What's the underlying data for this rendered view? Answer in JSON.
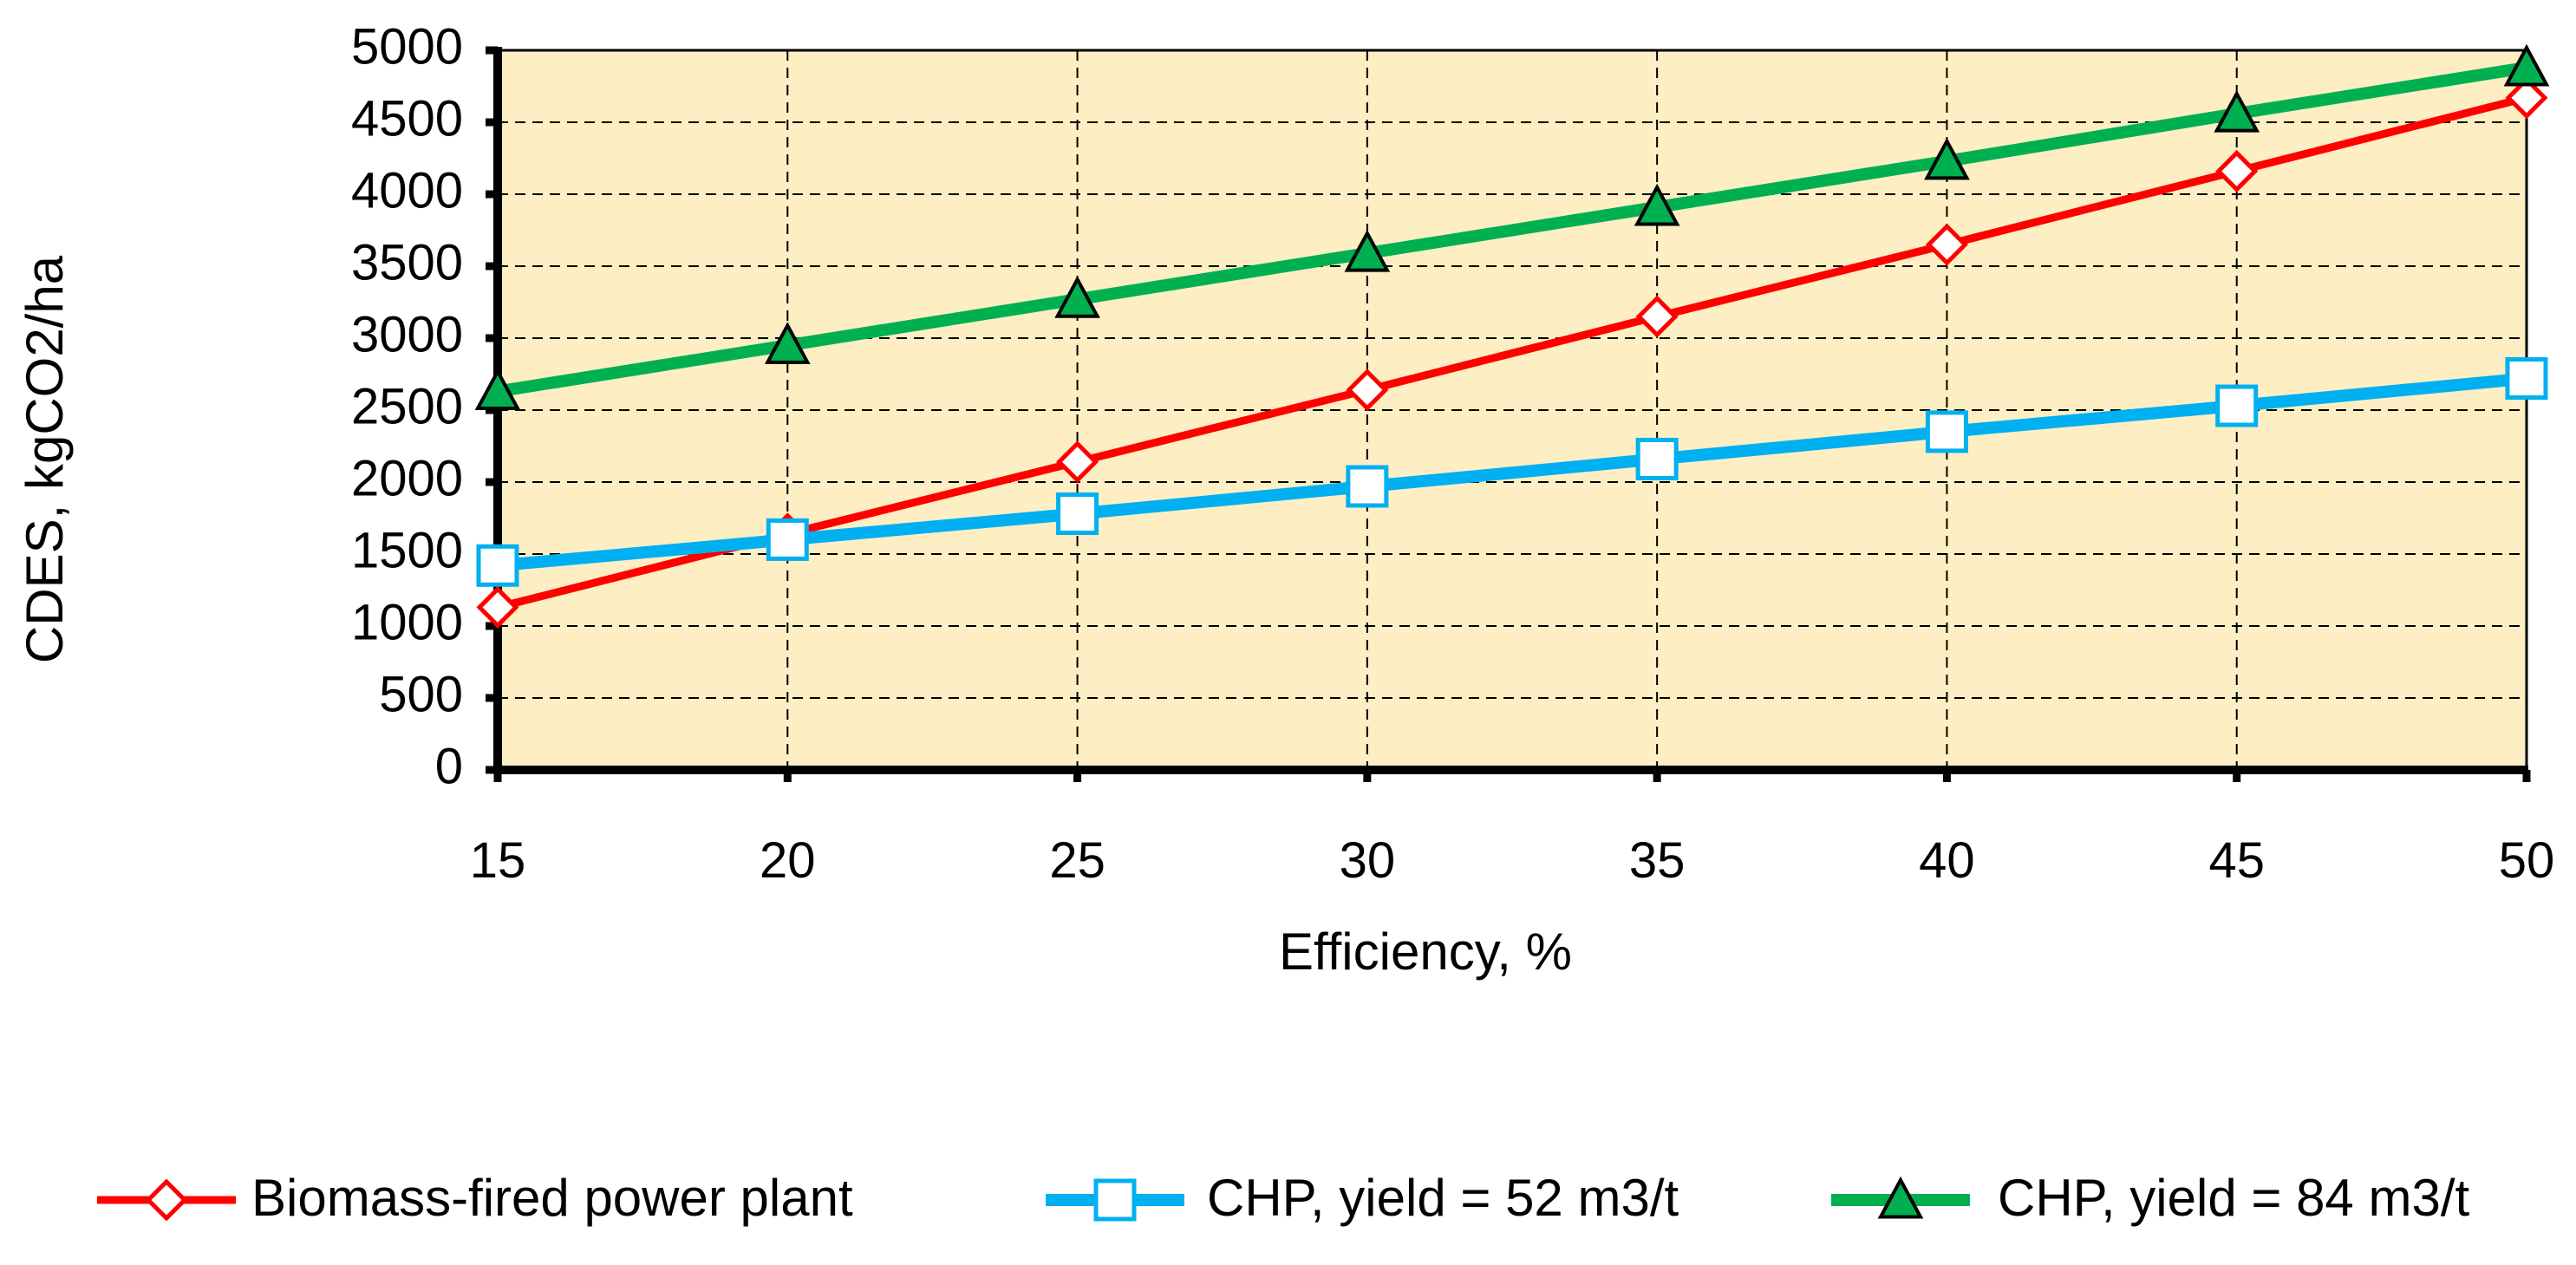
{
  "chart_data": {
    "type": "line",
    "title": "",
    "xlabel": "Efficiency, %",
    "ylabel": "CDES, kgCO2/ha",
    "x": [
      15,
      20,
      25,
      30,
      35,
      40,
      45,
      50
    ],
    "xlim": [
      15,
      50
    ],
    "ylim": [
      0,
      5000
    ],
    "yticks": [
      0,
      500,
      1000,
      1500,
      2000,
      2500,
      3000,
      3500,
      4000,
      4500,
      5000
    ],
    "grid": true,
    "legend_position": "bottom",
    "plot_background": "#fdeec3",
    "series": [
      {
        "name": "Biomass-fired power plant",
        "values": [
          1130,
          1640,
          2140,
          2640,
          3150,
          3650,
          4160,
          4670
        ],
        "color": "#ff0000",
        "marker": "diamond-open"
      },
      {
        "name": "CHP, yield = 52 m3/t",
        "values": [
          1420,
          1600,
          1780,
          1970,
          2160,
          2350,
          2530,
          2720
        ],
        "color": "#00b0f0",
        "marker": "square-open"
      },
      {
        "name": "CHP, yield = 84 m3/t",
        "values": [
          2630,
          2950,
          3270,
          3590,
          3910,
          4230,
          4560,
          4880
        ],
        "color": "#00b050",
        "marker": "triangle-filled"
      }
    ]
  }
}
